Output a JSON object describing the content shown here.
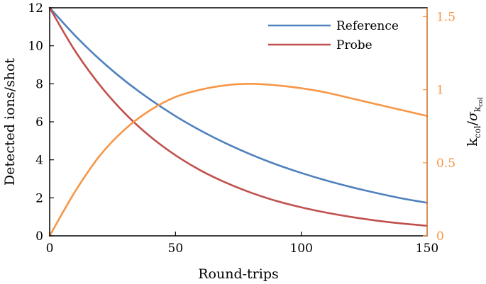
{
  "chart_data": {
    "type": "line",
    "xlabel": "Round-trips",
    "ylabel": "Detected ions/shot",
    "y2label": {
      "k": "k",
      "col_sub": "col",
      "slash": "/",
      "sigma": "σ",
      "sigma_sub_k": "k",
      "sigma_sub_col": "col"
    },
    "xlim": [
      0,
      150
    ],
    "ylim": [
      0,
      12
    ],
    "y2lim": [
      0,
      1.56
    ],
    "xticks": [
      0,
      50,
      100,
      150
    ],
    "xtick_labels": [
      "0",
      "50",
      "100",
      "150"
    ],
    "yticks": [
      0,
      2,
      4,
      6,
      8,
      10,
      12
    ],
    "ytick_labels": [
      "0",
      "2",
      "4",
      "6",
      "8",
      "10",
      "12"
    ],
    "y2ticks": [
      0,
      0.5,
      1,
      1.5
    ],
    "y2tick_labels": [
      "0",
      "0.5",
      "1",
      "1.5"
    ],
    "legend_position": "top-right",
    "grid": false,
    "colors": {
      "reference": "#4f81bd",
      "probe": "#c0504d",
      "ratio": "#f79646"
    },
    "series": [
      {
        "name": "Reference",
        "axis": "left",
        "x": [
          0,
          10,
          20,
          30,
          40,
          50,
          60,
          70,
          80,
          90,
          100,
          110,
          120,
          130,
          140,
          150
        ],
        "values": [
          12.0,
          10.55,
          9.27,
          8.15,
          7.17,
          6.3,
          5.54,
          4.87,
          4.28,
          3.76,
          3.31,
          2.91,
          2.56,
          2.25,
          1.97,
          1.74
        ]
      },
      {
        "name": "Probe",
        "axis": "left",
        "x": [
          0,
          10,
          20,
          30,
          40,
          50,
          60,
          70,
          80,
          90,
          100,
          110,
          120,
          130,
          140,
          150
        ],
        "values": [
          12.0,
          9.75,
          7.92,
          6.43,
          5.22,
          4.24,
          3.44,
          2.8,
          2.27,
          1.84,
          1.5,
          1.22,
          0.99,
          0.8,
          0.65,
          0.53
        ]
      },
      {
        "name": "",
        "axis": "right",
        "x": [
          0,
          10,
          20,
          30,
          40,
          50,
          60,
          70,
          80,
          90,
          100,
          110,
          120,
          130,
          140,
          150
        ],
        "values": [
          0.0,
          0.3,
          0.55,
          0.73,
          0.86,
          0.95,
          1.0,
          1.03,
          1.04,
          1.03,
          1.01,
          0.98,
          0.94,
          0.9,
          0.86,
          0.82
        ]
      }
    ]
  }
}
